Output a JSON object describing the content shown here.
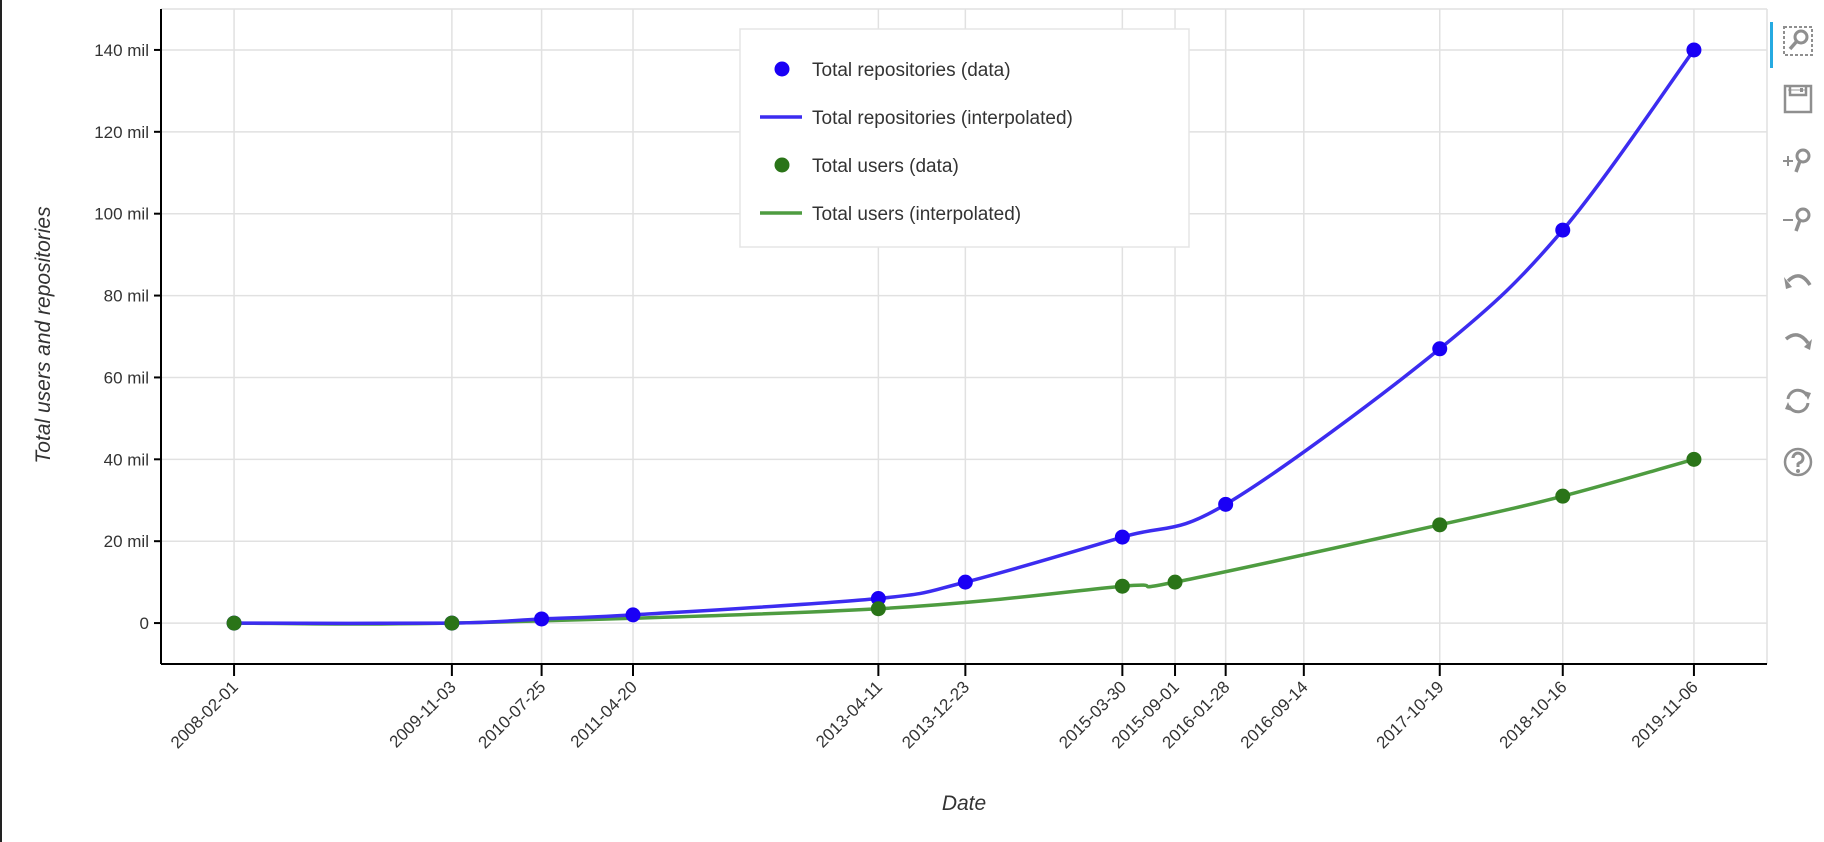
{
  "chart_data": {
    "type": "line",
    "xlabel": "Date",
    "ylabel": "Total users and repositories",
    "xlim": [
      "2007-07-01",
      "2020-06-08"
    ],
    "ylim": [
      -10,
      150
    ],
    "grid": true,
    "legend_placement": "top-center",
    "y_ticks": [
      0,
      20,
      40,
      60,
      80,
      100,
      120,
      140
    ],
    "y_tick_labels": [
      "0",
      "20 mil",
      "40 mil",
      "60 mil",
      "80 mil",
      "100 mil",
      "120 mil",
      "140 mil"
    ],
    "x_ticks": [
      "2008-02-01",
      "2009-11-03",
      "2010-07-25",
      "2011-04-20",
      "2013-04-11",
      "2013-12-23",
      "2015-03-30",
      "2015-09-01",
      "2016-01-28",
      "2016-09-14",
      "2017-10-19",
      "2018-10-16",
      "2019-11-06"
    ],
    "y_unit": "million",
    "series": [
      {
        "name": "Total repositories (data)",
        "kind": "scatter",
        "color": "#1a00f5",
        "x": [
          "2008-02-01",
          "2009-11-03",
          "2010-07-25",
          "2011-04-20",
          "2013-04-11",
          "2013-12-23",
          "2015-03-30",
          "2016-01-28",
          "2017-10-19",
          "2018-10-16",
          "2019-11-06"
        ],
        "y": [
          0,
          0,
          1,
          2,
          6,
          10,
          21,
          29,
          67,
          96,
          140
        ]
      },
      {
        "name": "Total repositories (interpolated)",
        "kind": "line",
        "color": "#3c2cf0"
      },
      {
        "name": "Total users (data)",
        "kind": "scatter",
        "color": "#2a7418",
        "x": [
          "2008-02-01",
          "2009-11-03",
          "2013-04-11",
          "2015-03-30",
          "2015-09-01",
          "2017-10-19",
          "2018-10-16",
          "2019-11-06"
        ],
        "y": [
          0,
          0,
          3.5,
          9,
          10,
          24,
          31,
          40
        ]
      },
      {
        "name": "Total users (interpolated)",
        "kind": "line",
        "color": "#4e9c40"
      }
    ]
  },
  "toolbar": {
    "tools": [
      "box-zoom-icon",
      "save-icon",
      "zoom-in-icon",
      "zoom-out-icon",
      "undo-icon",
      "redo-icon",
      "reset-icon",
      "help-icon"
    ],
    "active_color": "#26aae1",
    "icon_color": "#8f8f8f"
  }
}
